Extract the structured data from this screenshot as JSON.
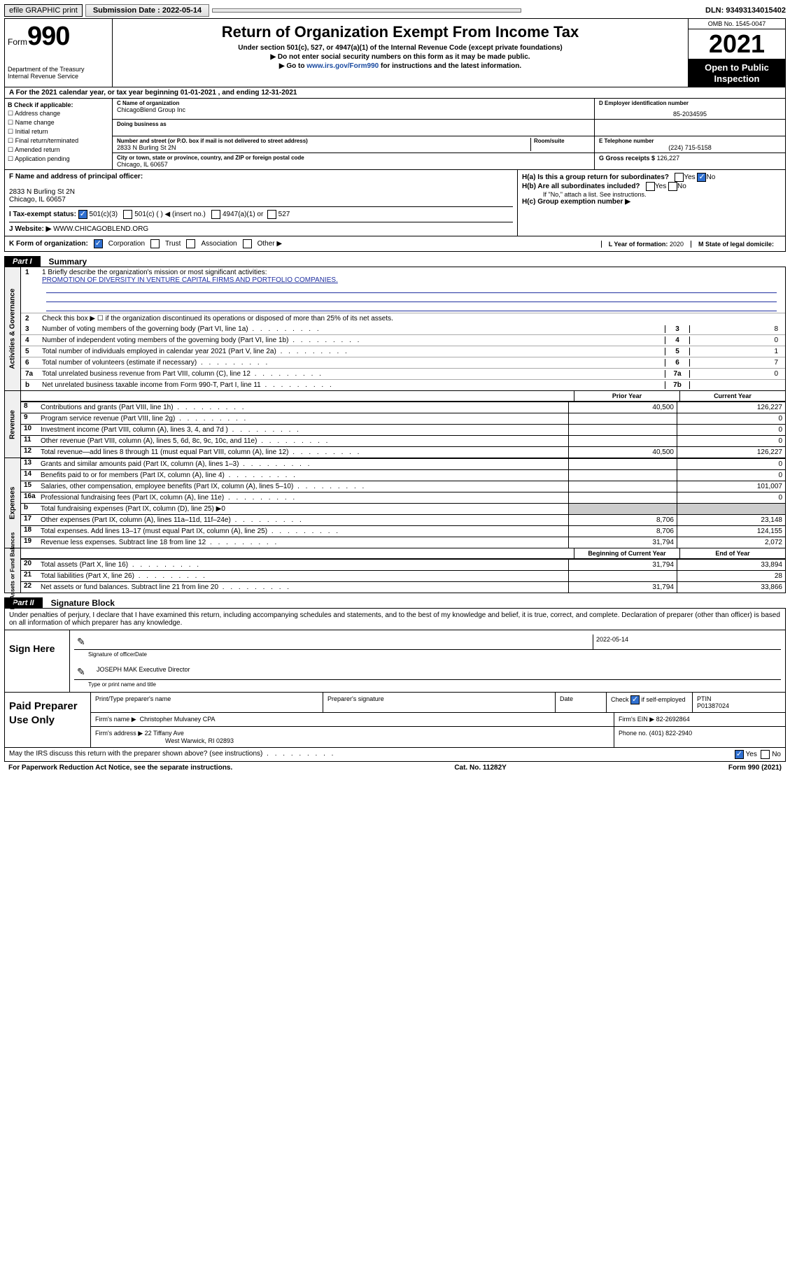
{
  "topbar": {
    "efile": "efile GRAPHIC print",
    "submission_label": "Submission Date : 2022-05-14",
    "dln": "DLN: 93493134015402"
  },
  "header": {
    "form_prefix": "Form",
    "form_number": "990",
    "title": "Return of Organization Exempt From Income Tax",
    "sub1": "Under section 501(c), 527, or 4947(a)(1) of the Internal Revenue Code (except private foundations)",
    "sub2": "Do not enter social security numbers on this form as it may be made public.",
    "sub3_pre": "Go to ",
    "sub3_link": "www.irs.gov/Form990",
    "sub3_post": " for instructions and the latest information.",
    "dept": "Department of the Treasury\nInternal Revenue Service",
    "omb": "OMB No. 1545-0047",
    "year": "2021",
    "open": "Open to Public Inspection"
  },
  "rowA": "A For the 2021 calendar year, or tax year beginning 01-01-2021   , and ending 12-31-2021",
  "colB": {
    "label": "B Check if applicable:",
    "items": [
      "Address change",
      "Name change",
      "Initial return",
      "Final return/terminated",
      "Amended return",
      "Application pending"
    ]
  },
  "blockC": {
    "name_label": "C Name of organization",
    "name": "ChicagoBlend Group Inc",
    "dba_label": "Doing business as",
    "addr_label": "Number and street (or P.O. box if mail is not delivered to street address)",
    "room_label": "Room/suite",
    "addr": "2833 N Burling St 2N",
    "city_label": "City or town, state or province, country, and ZIP or foreign postal code",
    "city": "Chicago, IL  60657"
  },
  "blockD": {
    "ein_label": "D Employer identification number",
    "ein": "85-2034595",
    "phone_label": "E Telephone number",
    "phone": "(224) 715-5158",
    "gross_label": "G Gross receipts $",
    "gross": "126,227"
  },
  "rowF": {
    "label": "F Name and address of principal officer:",
    "addr1": "2833 N Burling St 2N",
    "addr2": "Chicago, IL  60657"
  },
  "rowH": {
    "ha": "H(a)  Is this a group return for subordinates?",
    "hb": "H(b)  Are all subordinates included?",
    "hb_note": "If \"No,\" attach a list. See instructions.",
    "hc": "H(c)  Group exemption number ▶",
    "yes": "Yes",
    "no": "No"
  },
  "rowI": {
    "label": "I   Tax-exempt status:",
    "opts": [
      "501(c)(3)",
      "501(c) (   ) ◀ (insert no.)",
      "4947(a)(1) or",
      "527"
    ]
  },
  "rowJ": {
    "label": "J   Website: ▶",
    "val": "WWW.CHICAGOBLEND.ORG"
  },
  "rowK": {
    "label": "K Form of organization:",
    "opts": [
      "Corporation",
      "Trust",
      "Association",
      "Other ▶"
    ],
    "l_label": "L Year of formation:",
    "l_val": "2020",
    "m_label": "M State of legal domicile:",
    "m_val": ""
  },
  "part1": {
    "tab": "Part I",
    "title": "Summary"
  },
  "governance": {
    "vlabel": "Activities & Governance",
    "l1_label": "1   Briefly describe the organization's mission or most significant activities:",
    "l1_text": "PROMOTION OF DIVERSITY IN VENTURE CAPITAL FIRMS AND PORTFOLIO COMPANIES.",
    "l2": "Check this box ▶ ☐  if the organization discontinued its operations or disposed of more than 25% of its net assets.",
    "lines": [
      {
        "n": "3",
        "t": "Number of voting members of the governing body (Part VI, line 1a)",
        "box": "3",
        "v": "8"
      },
      {
        "n": "4",
        "t": "Number of independent voting members of the governing body (Part VI, line 1b)",
        "box": "4",
        "v": "0"
      },
      {
        "n": "5",
        "t": "Total number of individuals employed in calendar year 2021 (Part V, line 2a)",
        "box": "5",
        "v": "1"
      },
      {
        "n": "6",
        "t": "Total number of volunteers (estimate if necessary)",
        "box": "6",
        "v": "7"
      },
      {
        "n": "7a",
        "t": "Total unrelated business revenue from Part VIII, column (C), line 12",
        "box": "7a",
        "v": "0"
      },
      {
        "n": "b",
        "t": "Net unrelated business taxable income from Form 990-T, Part I, line 11",
        "box": "7b",
        "v": ""
      }
    ]
  },
  "col_headers": {
    "prior": "Prior Year",
    "current": "Current Year"
  },
  "revenue": {
    "vlabel": "Revenue",
    "rows": [
      {
        "n": "8",
        "t": "Contributions and grants (Part VIII, line 1h)",
        "p": "40,500",
        "c": "126,227"
      },
      {
        "n": "9",
        "t": "Program service revenue (Part VIII, line 2g)",
        "p": "",
        "c": "0"
      },
      {
        "n": "10",
        "t": "Investment income (Part VIII, column (A), lines 3, 4, and 7d )",
        "p": "",
        "c": "0"
      },
      {
        "n": "11",
        "t": "Other revenue (Part VIII, column (A), lines 5, 6d, 8c, 9c, 10c, and 11e)",
        "p": "",
        "c": "0"
      },
      {
        "n": "12",
        "t": "Total revenue—add lines 8 through 11 (must equal Part VIII, column (A), line 12)",
        "p": "40,500",
        "c": "126,227"
      }
    ]
  },
  "expenses": {
    "vlabel": "Expenses",
    "rows": [
      {
        "n": "13",
        "t": "Grants and similar amounts paid (Part IX, column (A), lines 1–3)",
        "p": "",
        "c": "0"
      },
      {
        "n": "14",
        "t": "Benefits paid to or for members (Part IX, column (A), line 4)",
        "p": "",
        "c": "0"
      },
      {
        "n": "15",
        "t": "Salaries, other compensation, employee benefits (Part IX, column (A), lines 5–10)",
        "p": "",
        "c": "101,007"
      },
      {
        "n": "16a",
        "t": "Professional fundraising fees (Part IX, column (A), line 11e)",
        "p": "",
        "c": "0"
      },
      {
        "n": "b",
        "t": "Total fundraising expenses (Part IX, column (D), line 25) ▶0",
        "shade": true
      },
      {
        "n": "17",
        "t": "Other expenses (Part IX, column (A), lines 11a–11d, 11f–24e)",
        "p": "8,706",
        "c": "23,148"
      },
      {
        "n": "18",
        "t": "Total expenses. Add lines 13–17 (must equal Part IX, column (A), line 25)",
        "p": "8,706",
        "c": "124,155"
      },
      {
        "n": "19",
        "t": "Revenue less expenses. Subtract line 18 from line 12",
        "p": "31,794",
        "c": "2,072"
      }
    ]
  },
  "netassets": {
    "vlabel": "Net Assets or Fund Balances",
    "hdr_begin": "Beginning of Current Year",
    "hdr_end": "End of Year",
    "rows": [
      {
        "n": "20",
        "t": "Total assets (Part X, line 16)",
        "p": "31,794",
        "c": "33,894"
      },
      {
        "n": "21",
        "t": "Total liabilities (Part X, line 26)",
        "p": "",
        "c": "28"
      },
      {
        "n": "22",
        "t": "Net assets or fund balances. Subtract line 21 from line 20",
        "p": "31,794",
        "c": "33,866"
      }
    ]
  },
  "part2": {
    "tab": "Part II",
    "title": "Signature Block"
  },
  "perjury": "Under penalties of perjury, I declare that I have examined this return, including accompanying schedules and statements, and to the best of my knowledge and belief, it is true, correct, and complete. Declaration of preparer (other than officer) is based on all information of which preparer has any knowledge.",
  "sign": {
    "left": "Sign Here",
    "date": "2022-05-14",
    "sig_label": "Signature of officer",
    "date_label": "Date",
    "name": "JOSEPH MAK  Executive Director",
    "name_label": "Type or print name and title"
  },
  "prep": {
    "left": "Paid Preparer Use Only",
    "h1": "Print/Type preparer's name",
    "h2": "Preparer's signature",
    "h3": "Date",
    "h4_pre": "Check",
    "h4_post": "if self-employed",
    "h5": "PTIN",
    "ptin": "P01387024",
    "firm_name_lbl": "Firm's name   ▶",
    "firm_name": "Christopher Mulvaney CPA",
    "firm_ein_lbl": "Firm's EIN ▶",
    "firm_ein": "82-2692864",
    "firm_addr_lbl": "Firm's address ▶",
    "firm_addr1": "22 Tiffany Ave",
    "firm_addr2": "West Warwick, RI  02893",
    "phone_lbl": "Phone no.",
    "phone": "(401) 822-2940"
  },
  "footer": {
    "discuss": "May the IRS discuss this return with the preparer shown above? (see instructions)",
    "yes": "Yes",
    "no": "No",
    "paperwork": "For Paperwork Reduction Act Notice, see the separate instructions.",
    "cat": "Cat. No. 11282Y",
    "form": "Form 990 (2021)"
  }
}
